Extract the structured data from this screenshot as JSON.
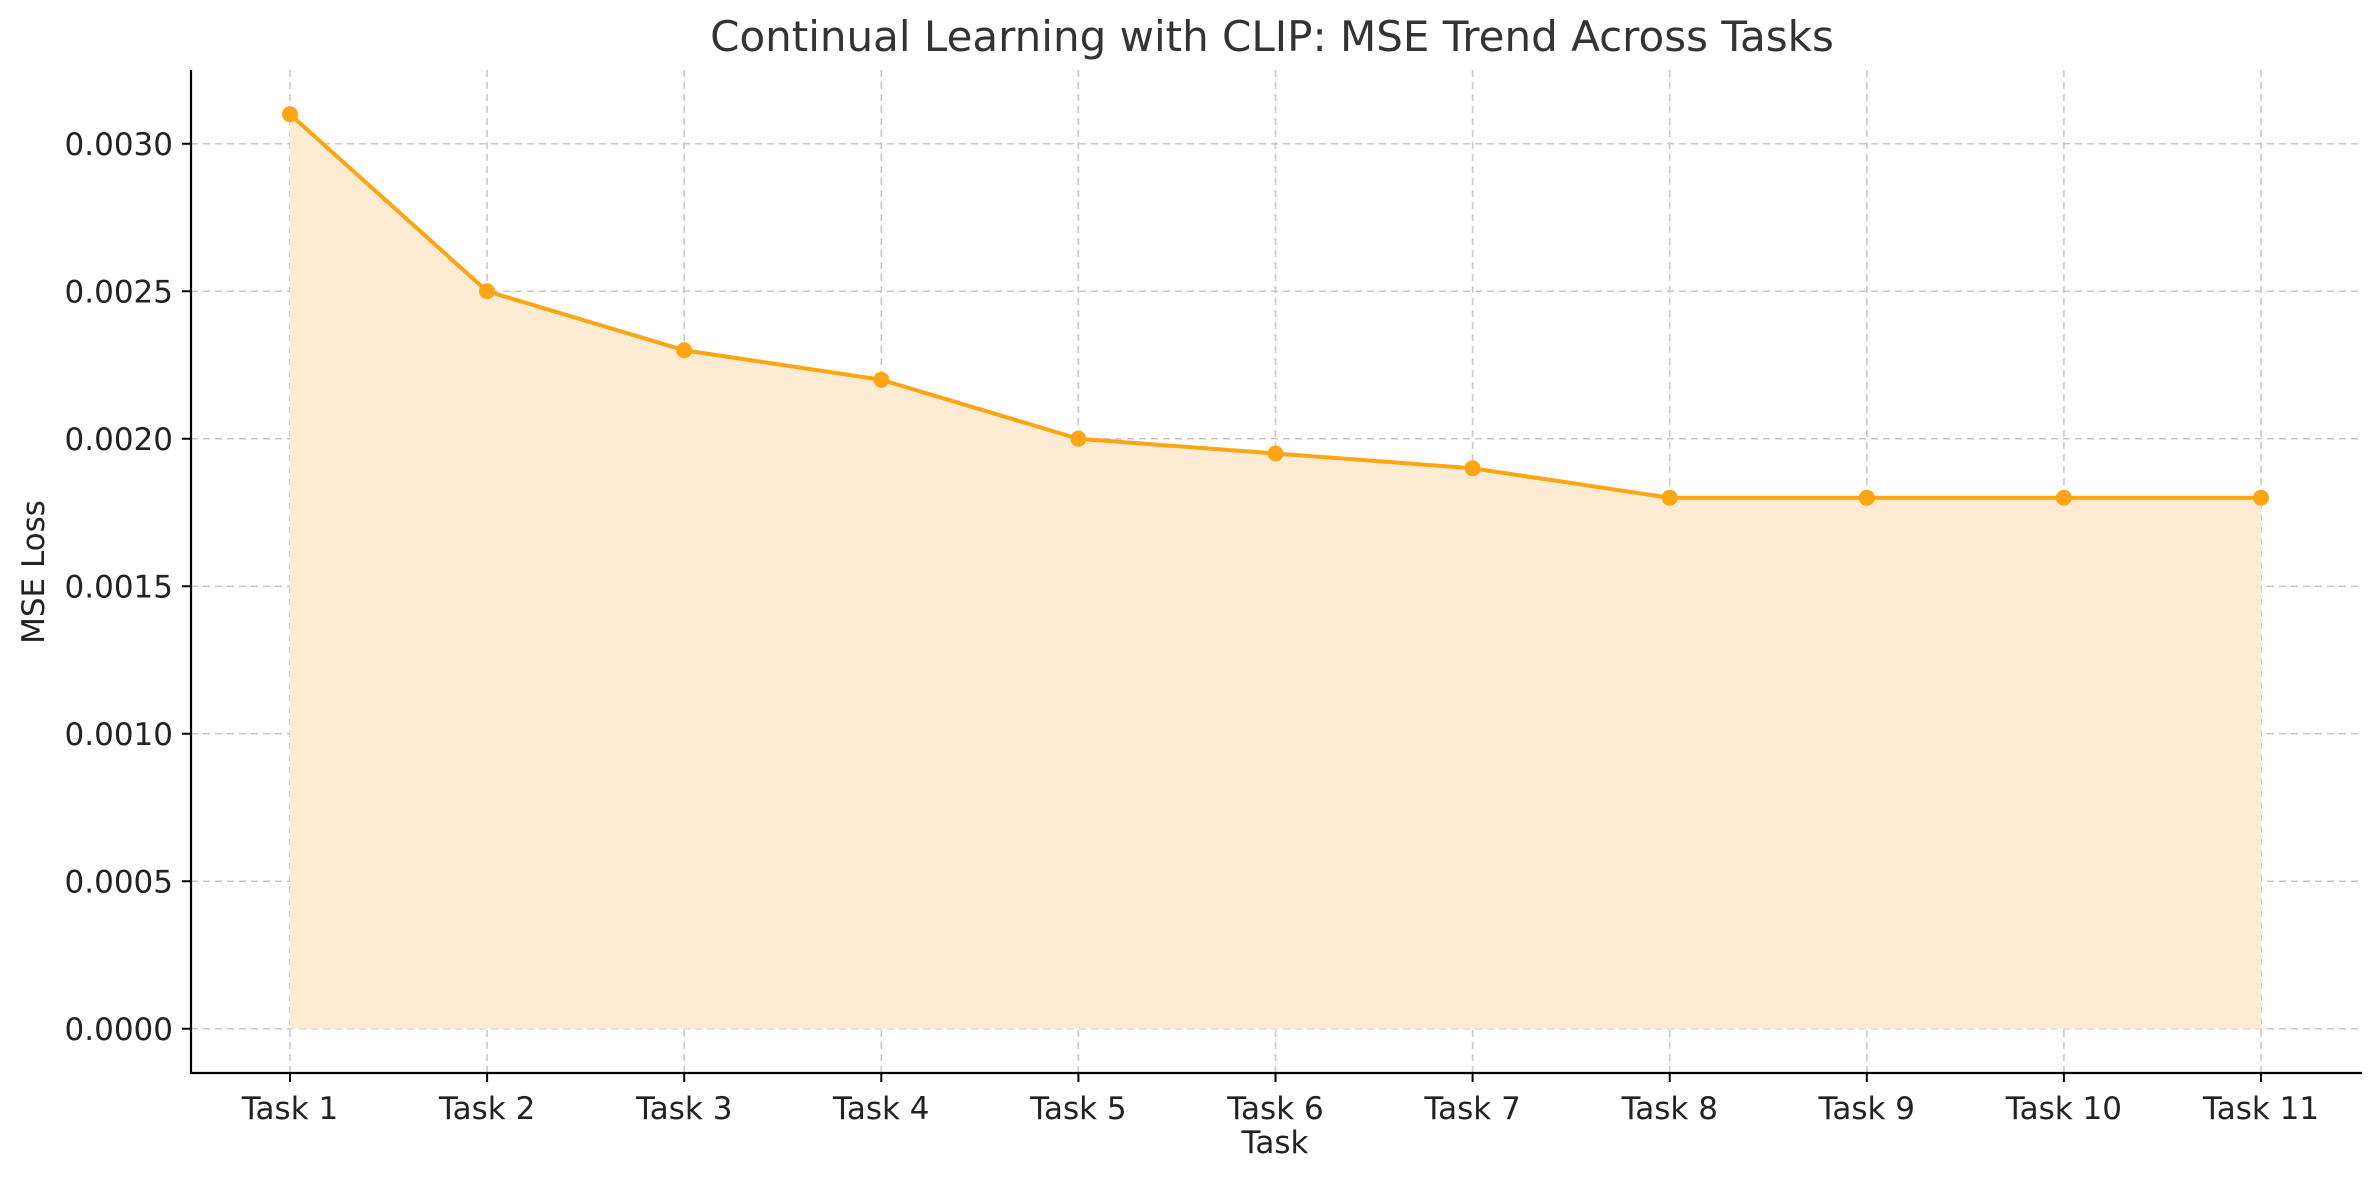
{
  "chart_data": {
    "type": "area",
    "title": "Continual Learning with CLIP: MSE Trend Across Tasks",
    "xlabel": "Task",
    "ylabel": "MSE Loss",
    "categories": [
      "Task 1",
      "Task 2",
      "Task 3",
      "Task 4",
      "Task 5",
      "Task 6",
      "Task 7",
      "Task 8",
      "Task 9",
      "Task 10",
      "Task 11"
    ],
    "series": [
      {
        "values": [
          0.0031,
          0.0025,
          0.0023,
          0.0022,
          0.002,
          0.00195,
          0.0019,
          0.0018,
          0.0018,
          0.0018,
          0.0018
        ],
        "line_color": "#FFA412",
        "fill_color": "#FDEBD3",
        "marker": "circle"
      }
    ],
    "yticks": [
      "0.0000",
      "0.0005",
      "0.0010",
      "0.0015",
      "0.0020",
      "0.0025",
      "0.0030"
    ],
    "ylim": [
      -0.00015,
      0.00325
    ],
    "grid": true
  }
}
